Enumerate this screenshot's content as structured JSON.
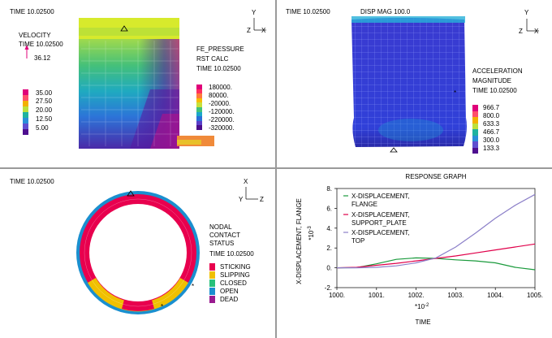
{
  "panels": {
    "velocity": {
      "time": "TIME 10.02500",
      "title": "VELOCITY",
      "time2": "TIME 10.02500",
      "arrow_value": "36.12",
      "legend_values": [
        "35.00",
        "27.50",
        "20.00",
        "12.50",
        "5.00"
      ],
      "legend_colors": [
        "#e0007a",
        "#ff4f6b",
        "#f3b000",
        "#bde03c",
        "#1fb3a0",
        "#2a8fd8",
        "#5f4fd0",
        "#4e0f8f"
      ],
      "pressure_title": "FE_PRESSURE",
      "pressure_sub": "RST CALC",
      "pressure_time": "TIME 10.02500",
      "pressure_values": [
        "180000.",
        "80000.",
        "-20000.",
        "-120000.",
        "-220000.",
        "-320000."
      ],
      "pressure_colors": [
        "#e0007a",
        "#ff2f5f",
        "#ff7a3c",
        "#f7bd00",
        "#c8e03a",
        "#43c27a",
        "#1ba7c9",
        "#2a6fd8",
        "#5a3ec8",
        "#4b0d8a"
      ],
      "axis_y": "Y",
      "axis_z": "Z",
      "axis_x": "X"
    },
    "disp": {
      "time": "TIME 10.02500",
      "title": "DISP MAG 100.0",
      "accel_title": "ACCELERATION",
      "accel_sub": "MAGNITUDE",
      "accel_time": "TIME 10.02500",
      "legend_values": [
        "966.7",
        "800.0",
        "633.3",
        "466.7",
        "300.0",
        "133.3"
      ],
      "legend_colors": [
        "#e0007a",
        "#ff4f6b",
        "#f3b000",
        "#bde03c",
        "#1fb3a0",
        "#2a8fd8",
        "#5f4fd0",
        "#4e0f8f"
      ],
      "axis_y": "Y",
      "axis_z": "Z",
      "axis_x": "X"
    },
    "contact": {
      "time": "TIME 10.02500",
      "title": "NODAL",
      "title2": "CONTACT",
      "title3": "STATUS",
      "status_time": "TIME 10.02500",
      "legend": [
        {
          "label": "STICKING",
          "color": "#e8004e"
        },
        {
          "label": "SLIPPING",
          "color": "#f0c000"
        },
        {
          "label": "CLOSED",
          "color": "#27c07a"
        },
        {
          "label": "OPEN",
          "color": "#1a8fcf"
        },
        {
          "label": "DEAD",
          "color": "#9a1b8f"
        }
      ],
      "axis_x": "X",
      "axis_y": "Y",
      "axis_z": "Z"
    }
  },
  "chart_data": {
    "type": "line",
    "title": "RESPONSE GRAPH",
    "xlabel": "TIME",
    "x_multiplier": "*10-2",
    "ylabel": "X-DISPLACEMENT, FLANGE",
    "y_multiplier": "*10-3",
    "xlim": [
      1000.0,
      1005.0
    ],
    "ylim": [
      -2,
      8
    ],
    "x_ticks": [
      "1000.",
      "1001.",
      "1002.",
      "1003.",
      "1004.",
      "1005."
    ],
    "y_ticks": [
      "8.",
      "6.",
      "4.",
      "2.",
      "0.",
      "-2."
    ],
    "series": [
      {
        "name_lines": [
          "X-DISPLACEMENT,",
          "FLANGE"
        ],
        "color": "#1a9a3c",
        "x": [
          1000.0,
          1000.5,
          1001.0,
          1001.5,
          1002.0,
          1002.5,
          1003.0,
          1003.5,
          1004.0,
          1004.5,
          1005.0
        ],
        "y": [
          0.0,
          0.02,
          0.4,
          0.85,
          1.0,
          0.95,
          0.8,
          0.7,
          0.5,
          0.05,
          -0.2
        ]
      },
      {
        "name_lines": [
          "X-DISPLACEMENT,",
          "SUPPORT_PLATE"
        ],
        "color": "#e0004a",
        "x": [
          1000.0,
          1000.5,
          1001.0,
          1001.5,
          1002.0,
          1002.5,
          1003.0,
          1003.5,
          1004.0,
          1004.5,
          1005.0
        ],
        "y": [
          0.0,
          0.05,
          0.25,
          0.45,
          0.7,
          0.95,
          1.2,
          1.5,
          1.8,
          2.1,
          2.4
        ]
      },
      {
        "name_lines": [
          "X-DISPLACEMENT,",
          "TOP"
        ],
        "color": "#8b7fc8",
        "x": [
          1000.0,
          1000.5,
          1001.0,
          1001.5,
          1002.0,
          1002.5,
          1003.0,
          1003.5,
          1004.0,
          1004.5,
          1005.0
        ],
        "y": [
          0.0,
          0.0,
          0.05,
          0.2,
          0.5,
          1.0,
          2.1,
          3.5,
          5.0,
          6.3,
          7.4
        ]
      }
    ]
  }
}
